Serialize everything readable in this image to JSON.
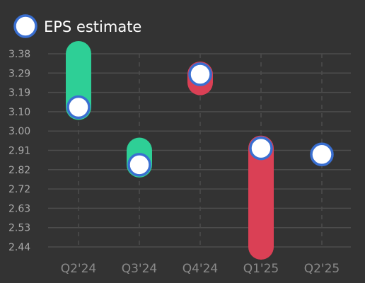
{
  "chart_data": {
    "type": "range-bar",
    "legend": {
      "label": "EPS estimate",
      "placement": "top-left"
    },
    "categories": [
      "Q2'24",
      "Q3'24",
      "Q4'24",
      "Q1'25",
      "Q2'25"
    ],
    "estimate": [
      3.12,
      2.84,
      3.28,
      2.92,
      2.89
    ],
    "actual": [
      3.38,
      2.91,
      3.24,
      2.44,
      null
    ],
    "yticks": [
      "3.38",
      "3.29",
      "3.19",
      "3.10",
      "3.00",
      "2.91",
      "2.82",
      "2.72",
      "2.63",
      "2.53",
      "2.44"
    ],
    "ylim": [
      2.44,
      3.38
    ],
    "grid": {
      "horizontal": true,
      "vertical": true,
      "vertical_style": "dashed"
    },
    "colors": {
      "background": "#333333",
      "beat": "#2ecf96",
      "miss": "#da4055",
      "marker_fill": "#ffffff",
      "marker_stroke": "#3a6fd1",
      "grid": "#4d4d4d"
    }
  }
}
